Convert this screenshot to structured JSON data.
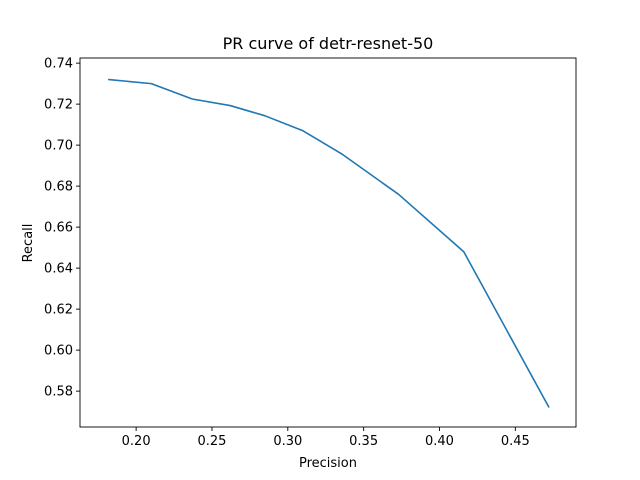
{
  "chart_data": {
    "type": "line",
    "title": "PR curve of detr-resnet-50",
    "xlabel": "Precision",
    "ylabel": "Recall",
    "xlim": [
      0.163,
      0.49
    ],
    "ylim": [
      0.5625,
      0.7425
    ],
    "xticks": [
      0.2,
      0.25,
      0.3,
      0.35,
      0.4,
      0.45
    ],
    "xtick_labels": [
      "0.20",
      "0.25",
      "0.30",
      "0.35",
      "0.40",
      "0.45"
    ],
    "yticks": [
      0.58,
      0.6,
      0.62,
      0.64,
      0.66,
      0.68,
      0.7,
      0.72,
      0.74
    ],
    "ytick_labels": [
      "0.58",
      "0.60",
      "0.62",
      "0.64",
      "0.66",
      "0.68",
      "0.70",
      "0.72",
      "0.74"
    ],
    "grid": false,
    "series": [
      {
        "color": "#1f77b4",
        "x": [
          0.182,
          0.21,
          0.237,
          0.262,
          0.285,
          0.31,
          0.336,
          0.373,
          0.416,
          0.472
        ],
        "y": [
          0.732,
          0.73,
          0.7225,
          0.7193,
          0.7143,
          0.707,
          0.6955,
          0.676,
          0.648,
          0.5723
        ]
      }
    ]
  }
}
